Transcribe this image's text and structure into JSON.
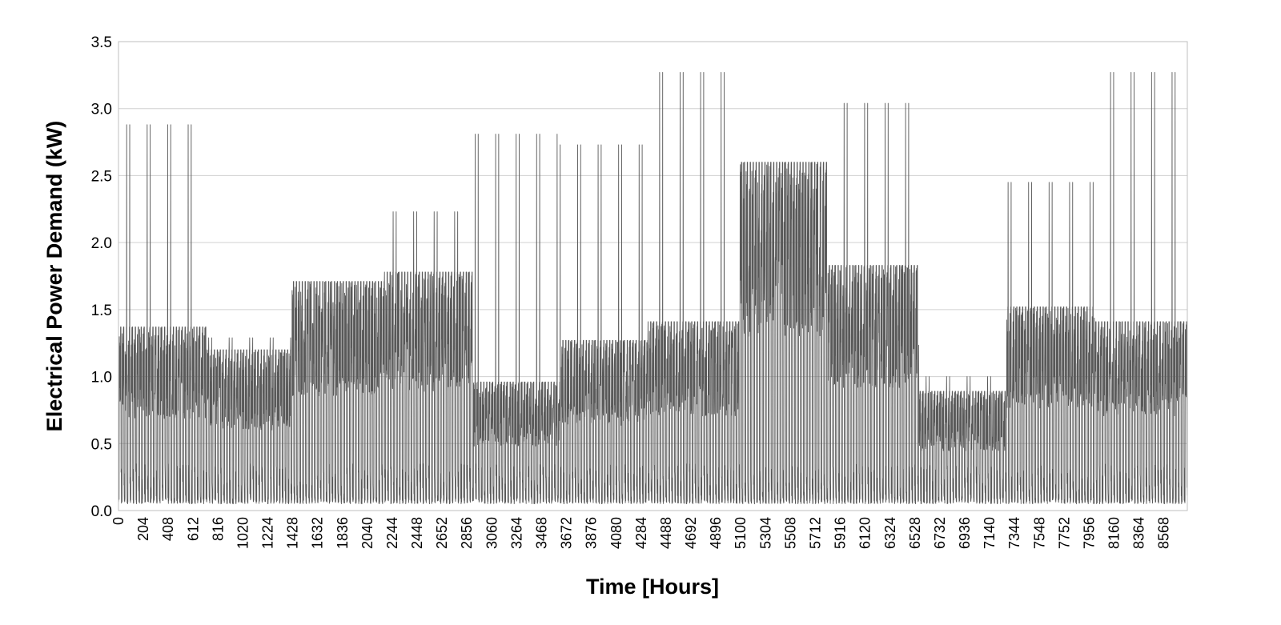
{
  "chart_data": {
    "type": "line",
    "title": "",
    "xlabel": "Time [Hours]",
    "ylabel": "Electrical Power Demand (kW)",
    "xlim": [
      0,
      8760
    ],
    "ylim": [
      0,
      3.5
    ],
    "grid": true,
    "legend": "none",
    "line_color": "#595959",
    "y_ticks": [
      "0.0",
      "0.5",
      "1.0",
      "1.5",
      "2.0",
      "2.5",
      "3.0",
      "3.5"
    ],
    "x_ticks": [
      "0",
      "204",
      "408",
      "612",
      "816",
      "1020",
      "1224",
      "1428",
      "1632",
      "1836",
      "2040",
      "2244",
      "2448",
      "2652",
      "2856",
      "3060",
      "3264",
      "3468",
      "3672",
      "3876",
      "4080",
      "4284",
      "4488",
      "4692",
      "4896",
      "5100",
      "5304",
      "5508",
      "5712",
      "5916",
      "6120",
      "6324",
      "6528",
      "6732",
      "6936",
      "7140",
      "7344",
      "7548",
      "7752",
      "7956",
      "8160",
      "8364",
      "8568"
    ],
    "series": [
      {
        "segments": [
          {
            "start": 0,
            "end": 730,
            "base": 1.37,
            "peak": 2.88,
            "min": 0.05
          },
          {
            "start": 730,
            "end": 1420,
            "base": 1.2,
            "peak": 1.29,
            "min": 0.05
          },
          {
            "start": 1420,
            "end": 2180,
            "base": 1.71,
            "peak": 1.71,
            "min": 0.05
          },
          {
            "start": 2180,
            "end": 2900,
            "base": 1.78,
            "peak": 2.23,
            "min": 0.05
          },
          {
            "start": 2900,
            "end": 3620,
            "base": 0.96,
            "peak": 2.81,
            "min": 0.05
          },
          {
            "start": 3620,
            "end": 4340,
            "base": 1.27,
            "peak": 2.73,
            "min": 0.05
          },
          {
            "start": 4340,
            "end": 5090,
            "base": 1.41,
            "peak": 3.27,
            "min": 0.05
          },
          {
            "start": 5090,
            "end": 5810,
            "base": 2.6,
            "peak": 2.6,
            "min": 0.05
          },
          {
            "start": 5810,
            "end": 6560,
            "base": 1.83,
            "peak": 3.04,
            "min": 0.05
          },
          {
            "start": 6560,
            "end": 7280,
            "base": 0.89,
            "peak": 1.0,
            "min": 0.05
          },
          {
            "start": 7280,
            "end": 8000,
            "base": 1.52,
            "peak": 2.45,
            "min": 0.05
          },
          {
            "start": 8000,
            "end": 8760,
            "base": 1.41,
            "peak": 3.27,
            "min": 0.05
          }
        ]
      }
    ]
  }
}
